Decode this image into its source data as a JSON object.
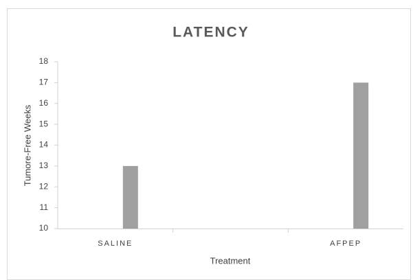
{
  "chart_data": {
    "type": "bar",
    "title": "LATENCY",
    "x_label": "Treatment",
    "y_label": "Tumore-Free Weeks",
    "categories": [
      "SALINE",
      null,
      "AFPEP"
    ],
    "values": [
      13,
      null,
      17
    ],
    "color": "#a0a0a0",
    "ylim": [
      10,
      18
    ],
    "yticks": [
      10,
      11,
      12,
      13,
      14,
      15,
      16,
      17,
      18
    ],
    "grid": false
  }
}
